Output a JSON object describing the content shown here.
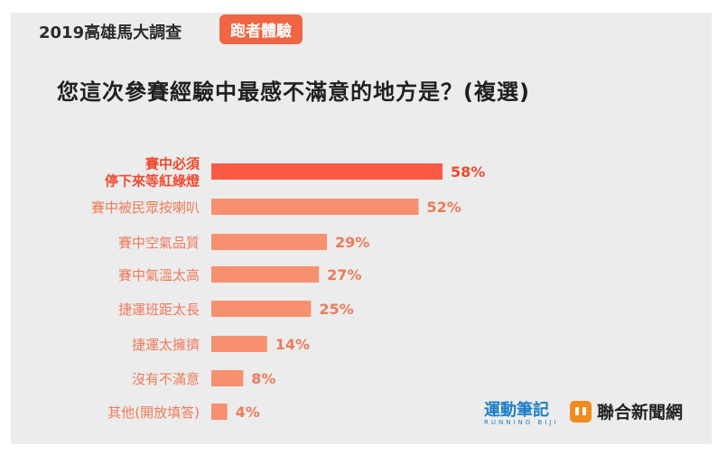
{
  "header": {
    "title": "2019高雄馬大調查",
    "badge": "跑者體驗"
  },
  "question": "您這次參賽經驗中最感不滿意的地方是？(複選)",
  "colors": {
    "highlight": "#fa5a44",
    "bar": "#f7906e",
    "highlight_text": "#f0492f",
    "label_text": "#ee7a5a"
  },
  "chart_data": {
    "type": "bar",
    "orientation": "horizontal",
    "categories": [
      [
        "賽中必須",
        "停下來等紅綠燈"
      ],
      [
        "賽中被民眾按喇叭"
      ],
      [
        "賽中空氣品質"
      ],
      [
        "賽中氣溫太高"
      ],
      [
        "捷運班距太長"
      ],
      [
        "捷運太擁擠"
      ],
      [
        "沒有不滿意"
      ],
      [
        "其他(開放填答)"
      ]
    ],
    "values": [
      58,
      52,
      29,
      27,
      25,
      14,
      8,
      4
    ],
    "value_labels": [
      "58%",
      "52%",
      "29%",
      "27%",
      "25%",
      "14%",
      "8%",
      "4%"
    ],
    "highlight_index": 0,
    "unit": "%",
    "xlim": [
      0,
      58
    ],
    "grid": false,
    "legend": "none"
  },
  "logos": {
    "running_main": "運動筆記",
    "running_sub": "RUNNING BIJI",
    "udn_text": "聯合新聞網"
  }
}
